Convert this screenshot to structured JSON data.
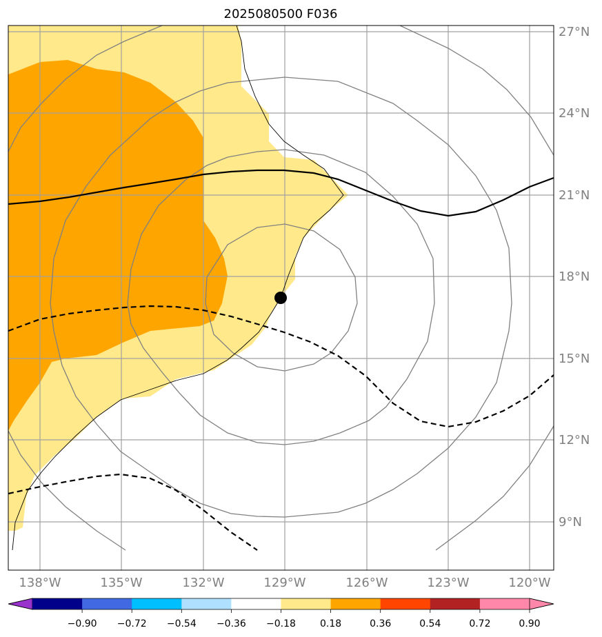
{
  "title": "2025080500 F036",
  "colors": {
    "shade_light": "#ffe98a",
    "shade_dark": "#ffa500",
    "grid": "#a0a0a0",
    "contour": "#808080",
    "center_dot": "#000000"
  },
  "map": {
    "lon_range": [
      -139.2,
      -119.1
    ],
    "lat_range": [
      7.3,
      27.3
    ],
    "lat_labels": [
      "27°N",
      "24°N",
      "21°N",
      "18°N",
      "15°N",
      "12°N",
      "9°N"
    ],
    "lon_labels": [
      "138°W",
      "135°W",
      "132°W",
      "129°W",
      "126°W",
      "123°W",
      "120°W"
    ],
    "center_marker": {
      "lon": -129.15,
      "lat": 17.2
    }
  },
  "colorbar": {
    "colors": [
      "#9932cc",
      "#00008b",
      "#4169e1",
      "#00bfff",
      "#b0e0ff",
      "#ffffff",
      "#ffe98a",
      "#ffa500",
      "#ff4500",
      "#b22222",
      "#ff88aa",
      "#ff88aa"
    ],
    "labels": [
      "−0.90",
      "−0.72",
      "−0.54",
      "−0.36",
      "−0.18",
      "0.18",
      "0.36",
      "0.54",
      "0.72",
      "0.90"
    ]
  }
}
